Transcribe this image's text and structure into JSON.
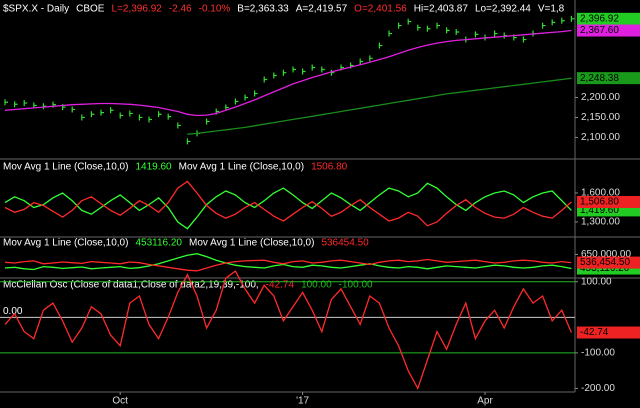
{
  "chart_data": [
    {
      "type": "line",
      "title": "$SPX.X - Daily",
      "header": [
        {
          "text": "CBOE",
          "color": "#ffffff"
        },
        {
          "text": "L=2,396.92",
          "color": "#ff3030"
        },
        {
          "text": "-2.46",
          "color": "#ff3030"
        },
        {
          "text": "-0.10%",
          "color": "#ff3030"
        },
        {
          "text": "B=2,363.33",
          "color": "#ffffff"
        },
        {
          "text": "A=2,419.57",
          "color": "#ffffff"
        },
        {
          "text": "O=2,401.56",
          "color": "#ff3030"
        },
        {
          "text": "Hi=2,403.87",
          "color": "#ffffff"
        },
        {
          "text": "Lo=2,392.44",
          "color": "#ffffff"
        },
        {
          "text": "V=1,8",
          "color": "#ffffff"
        }
      ],
      "ylim": [
        2051,
        2434
      ],
      "yticks": [
        {
          "value": 2100,
          "label": "2,100.00"
        },
        {
          "value": 2150,
          "label": "2,150.00"
        },
        {
          "value": 2200,
          "label": "2,200.00"
        }
      ],
      "series": [
        {
          "style": "bars",
          "color": "#33dd33",
          "tag_color": "#22cc22",
          "last_label": "2,396.92",
          "values": [
            2188,
            2183,
            2186,
            2180,
            2178,
            2182,
            2176,
            2170,
            2150,
            2158,
            2162,
            2168,
            2155,
            2160,
            2150,
            2145,
            2158,
            2152,
            2130,
            2090,
            2110,
            2140,
            2165,
            2175,
            2190,
            2200,
            2210,
            2245,
            2255,
            2262,
            2270,
            2265,
            2275,
            2270,
            2262,
            2275,
            2280,
            2290,
            2298,
            2330,
            2360,
            2380,
            2390,
            2375,
            2372,
            2380,
            2368,
            2364,
            2345,
            2358,
            2350,
            2360,
            2355,
            2350,
            2345,
            2360,
            2380,
            2388,
            2392,
            2396.92
          ]
        },
        {
          "style": "line",
          "color": "#e020e0",
          "tag_color": "#e020e0",
          "last_label": "2,367.60",
          "values": [
            2168,
            2170,
            2172,
            2174,
            2176,
            2178,
            2180,
            2182,
            2183,
            2184,
            2185,
            2185,
            2184,
            2183,
            2181,
            2178,
            2175,
            2170,
            2165,
            2158,
            2155,
            2156,
            2160,
            2168,
            2176,
            2185,
            2194,
            2204,
            2214,
            2224,
            2234,
            2242,
            2250,
            2257,
            2264,
            2270,
            2276,
            2282,
            2288,
            2295,
            2302,
            2310,
            2318,
            2325,
            2331,
            2336,
            2340,
            2343,
            2345,
            2347,
            2349,
            2351,
            2353,
            2355,
            2357,
            2359,
            2361,
            2363,
            2365,
            2367.6
          ]
        },
        {
          "style": "line",
          "color": "#1a8a1a",
          "tag_color": "#1a9a1a",
          "last_label": "2,248.38",
          "values": [
            null,
            null,
            null,
            null,
            null,
            null,
            null,
            null,
            null,
            null,
            null,
            null,
            null,
            null,
            null,
            null,
            null,
            null,
            null,
            2108,
            2110,
            2113,
            2116,
            2119,
            2122,
            2125,
            2129,
            2133,
            2137,
            2141,
            2145,
            2149,
            2153,
            2157,
            2161,
            2165,
            2169,
            2173,
            2177,
            2181,
            2185,
            2189,
            2193,
            2197,
            2201,
            2205,
            2209,
            2212,
            2215,
            2218,
            2221,
            2224,
            2227,
            2230,
            2233,
            2236,
            2239,
            2242,
            2245,
            2248.38
          ]
        }
      ]
    },
    {
      "type": "line",
      "ylim": [
        1186,
        1786
      ],
      "yticks": [
        {
          "value": 1600,
          "label": "1,600.00"
        },
        {
          "value": 1300,
          "label": "1,300.00"
        }
      ],
      "series": [
        {
          "name": "Mov Avg 1 Line (Close,10,0)",
          "style": "line",
          "color": "#33ff33",
          "tag_color": "#22cc22",
          "legend_label": "1419.60",
          "last_label": "1,419.60",
          "values": [
            1500,
            1560,
            1520,
            1450,
            1480,
            1550,
            1600,
            1520,
            1420,
            1380,
            1450,
            1520,
            1580,
            1500,
            1420,
            1480,
            1550,
            1450,
            1300,
            1230,
            1350,
            1480,
            1560,
            1620,
            1580,
            1500,
            1450,
            1520,
            1600,
            1650,
            1580,
            1500,
            1440,
            1520,
            1600,
            1550,
            1480,
            1420,
            1500,
            1580,
            1650,
            1620,
            1560,
            1600,
            1700,
            1650,
            1560,
            1480,
            1420,
            1500,
            1560,
            1600,
            1620,
            1580,
            1500,
            1560,
            1600,
            1620,
            1520,
            1419.6
          ]
        },
        {
          "name": "Mov Avg 1 Line (Close,10,0)",
          "style": "line",
          "color": "#ff2a2a",
          "tag_color": "#ee2222",
          "legend_label": "1506.80",
          "last_label": "1,506.80",
          "values": [
            1450,
            1400,
            1430,
            1500,
            1470,
            1410,
            1350,
            1420,
            1520,
            1560,
            1490,
            1420,
            1370,
            1440,
            1520,
            1470,
            1400,
            1500,
            1650,
            1720,
            1600,
            1470,
            1390,
            1340,
            1380,
            1450,
            1500,
            1430,
            1360,
            1310,
            1380,
            1450,
            1510,
            1440,
            1360,
            1400,
            1470,
            1530,
            1450,
            1380,
            1310,
            1340,
            1400,
            1360,
            1260,
            1300,
            1390,
            1470,
            1530,
            1450,
            1390,
            1350,
            1340,
            1380,
            1450,
            1400,
            1360,
            1340,
            1420,
            1506.8
          ]
        }
      ]
    },
    {
      "type": "line",
      "ylim": [
        349000,
        712000
      ],
      "yticks": [
        {
          "value": 650000,
          "label": "650,000.00"
        }
      ],
      "series": [
        {
          "name": "Mov Avg 1 Line (Close,10,0)",
          "style": "line",
          "color": "#33ff33",
          "tag_color": "#22cc22",
          "legend_label": "453116.20",
          "last_label": "453,116.20",
          "values": [
            460000,
            470000,
            450000,
            440000,
            480000,
            470000,
            455000,
            465000,
            475000,
            450000,
            460000,
            470000,
            480000,
            455000,
            465000,
            490000,
            520000,
            560000,
            600000,
            640000,
            660000,
            620000,
            570000,
            530000,
            500000,
            480000,
            470000,
            460000,
            490000,
            510000,
            480000,
            470000,
            500000,
            490000,
            470000,
            460000,
            480000,
            500000,
            520000,
            490000,
            470000,
            460000,
            480000,
            470000,
            450000,
            470000,
            490000,
            480000,
            470000,
            460000,
            480000,
            500000,
            490000,
            470000,
            460000,
            470000,
            490000,
            500000,
            480000,
            453116.2
          ]
        },
        {
          "name": "Mov Avg 1 Line (Close,10,0)",
          "style": "line",
          "color": "#ff2a2a",
          "tag_color": "#ee2222",
          "legend_label": "536454.50",
          "last_label": "536,454.50",
          "values": [
            540000,
            530000,
            550000,
            560000,
            520000,
            530000,
            545000,
            535000,
            525000,
            550000,
            540000,
            530000,
            520000,
            545000,
            535000,
            510000,
            490000,
            470000,
            450000,
            430000,
            420000,
            460000,
            500000,
            530000,
            550000,
            560000,
            565000,
            570000,
            540000,
            520000,
            550000,
            560000,
            530000,
            540000,
            560000,
            570000,
            550000,
            530000,
            510000,
            540000,
            560000,
            570000,
            550000,
            560000,
            580000,
            560000,
            540000,
            550000,
            560000,
            570000,
            550000,
            530000,
            540000,
            560000,
            570000,
            560000,
            540000,
            530000,
            550000,
            536454.5
          ]
        }
      ]
    },
    {
      "type": "line",
      "ylim": [
        -210,
        105
      ],
      "yticks": [
        {
          "value": 100,
          "label": "100.00"
        },
        {
          "value": -100,
          "label": "-100.00"
        },
        {
          "value": -200,
          "label": "-200.00"
        }
      ],
      "zero_line": {
        "value": 0,
        "label": "0.00"
      },
      "levels": [
        {
          "value": 100,
          "label": "100.00",
          "color": "#22bb22"
        },
        {
          "value": -100,
          "label": "-100.00",
          "color": "#22bb22"
        }
      ],
      "categories": [
        null,
        null,
        null,
        null,
        null,
        null,
        null,
        null,
        null,
        null,
        null,
        null,
        "Oct",
        null,
        null,
        null,
        null,
        null,
        null,
        null,
        null,
        null,
        null,
        null,
        null,
        null,
        null,
        null,
        null,
        null,
        null,
        "'17",
        null,
        null,
        null,
        null,
        null,
        null,
        null,
        null,
        null,
        null,
        null,
        null,
        null,
        null,
        null,
        null,
        null,
        null,
        "Apr",
        null,
        null,
        null,
        null,
        null,
        null,
        null,
        null,
        null
      ],
      "series": [
        {
          "name": "McClellan Osc (Close of data1,Close of data2,19,39,-100,",
          "style": "line",
          "color": "#ff2a2a",
          "tag_color": "#ee2222",
          "legend_label": "-42.74",
          "last_label": "-42.74",
          "values": [
            -20,
            10,
            -40,
            -60,
            20,
            40,
            -10,
            -70,
            -30,
            30,
            10,
            -50,
            -80,
            40,
            60,
            -20,
            -60,
            0,
            70,
            120,
            60,
            -30,
            20,
            110,
            130,
            80,
            40,
            90,
            60,
            -10,
            30,
            70,
            20,
            -40,
            50,
            80,
            30,
            -20,
            60,
            40,
            -30,
            -80,
            -150,
            -200,
            -120,
            -40,
            -90,
            -20,
            40,
            -60,
            -10,
            20,
            -30,
            30,
            80,
            40,
            60,
            -10,
            20,
            -42.74
          ]
        }
      ]
    }
  ]
}
